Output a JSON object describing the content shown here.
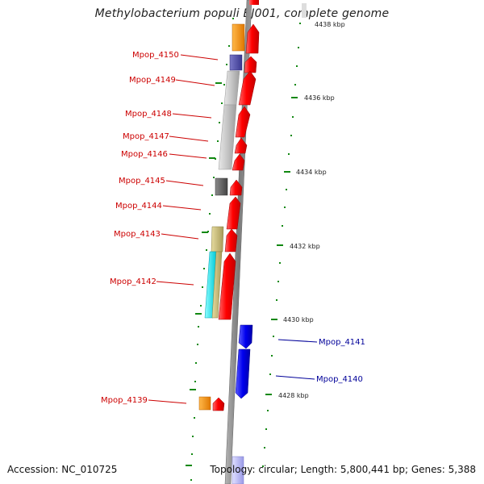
{
  "title": "Methylobacterium populi BJ001, complete genome",
  "footer": {
    "accession": "Accession: NC_010725",
    "summary": "Topology: circular; Length: 5,800,441 bp; Genes: 5,388"
  },
  "scale_labels": {
    "top_partial": "4438 kbp",
    "k4436": "4436 kbp",
    "k4434": "4434 kbp",
    "k4432": "4432 kbp",
    "k4430": "4430 kbp",
    "k4428": "4428 kbp"
  },
  "gene_labels": {
    "g4150": "Mpop_4150",
    "g4149": "Mpop_4149",
    "g4148": "Mpop_4148",
    "g4147": "Mpop_4147",
    "g4146": "Mpop_4146",
    "g4145": "Mpop_4145",
    "g4144": "Mpop_4144",
    "g4143": "Mpop_4143",
    "g4142": "Mpop_4142",
    "g4141": "Mpop_4141",
    "g4140": "Mpop_4140",
    "g4139": "Mpop_4139"
  },
  "colors": {
    "forward_gene": "#ff0000",
    "reverse_gene": "#0000ee",
    "label_forward": "#cc0000",
    "label_reverse": "#000099",
    "backbone": "#8a8a8a",
    "tick": "#118811"
  }
}
